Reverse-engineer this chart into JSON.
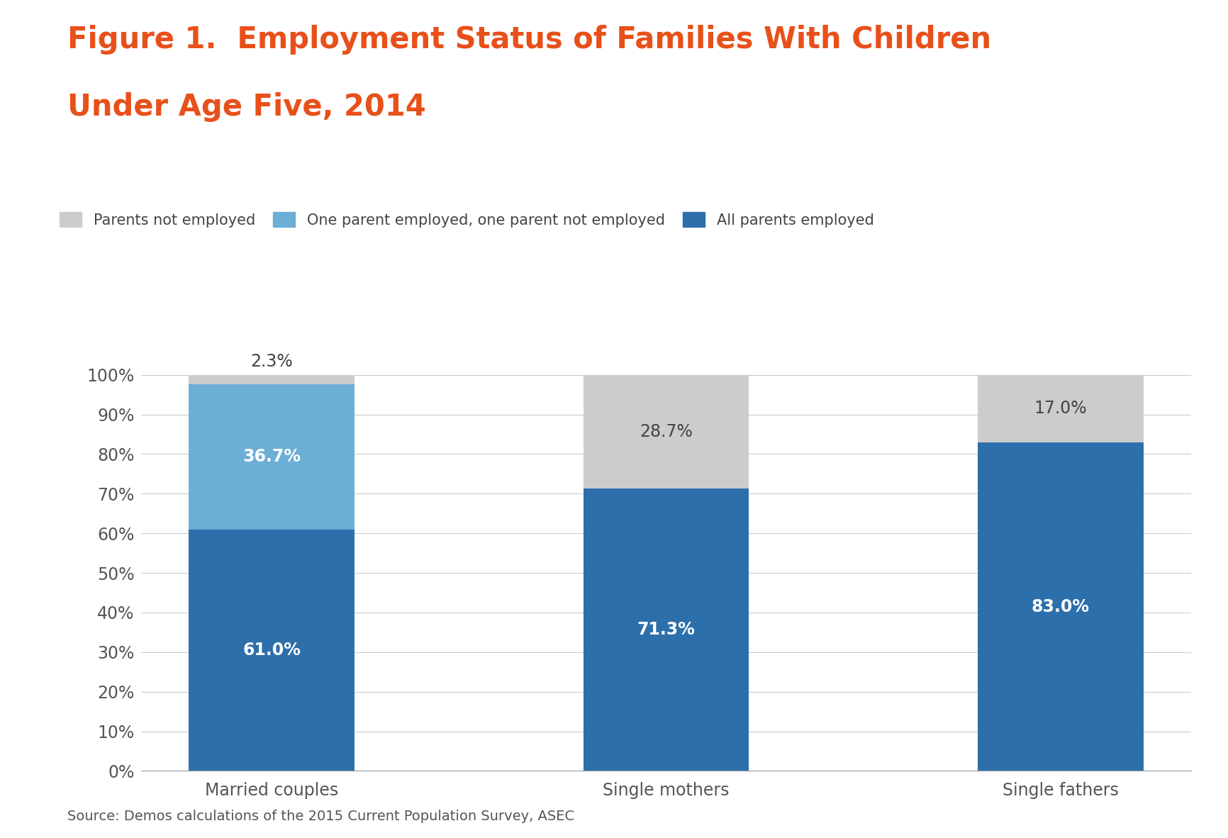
{
  "title_line1": "Figure 1.  Employment Status of Families With Children",
  "title_line2": "Under Age Five, 2014",
  "title_color": "#E8501A",
  "title_fontsize": 30,
  "categories": [
    "Married couples",
    "Single mothers",
    "Single fathers"
  ],
  "all_parents_employed": [
    61.0,
    71.3,
    83.0
  ],
  "one_parent_employed": [
    36.7,
    0.0,
    0.0
  ],
  "parents_not_employed": [
    2.3,
    28.7,
    17.0
  ],
  "color_all_employed": "#2D6FAB",
  "color_one_employed": "#6BAED6",
  "color_not_employed": "#CCCCCC",
  "legend_labels": [
    "Parents not employed",
    "One parent employed, one parent not employed",
    "All parents employed"
  ],
  "source_text": "Source: Demos calculations of the 2015 Current Population Survey, ASEC",
  "ylabel_ticks": [
    "0%",
    "10%",
    "20%",
    "30%",
    "40%",
    "50%",
    "60%",
    "70%",
    "80%",
    "90%",
    "100%"
  ],
  "background_color": "#FFFFFF",
  "label_fontsize": 17,
  "tick_fontsize": 17,
  "legend_fontsize": 15,
  "source_fontsize": 14,
  "bar_width": 0.42
}
